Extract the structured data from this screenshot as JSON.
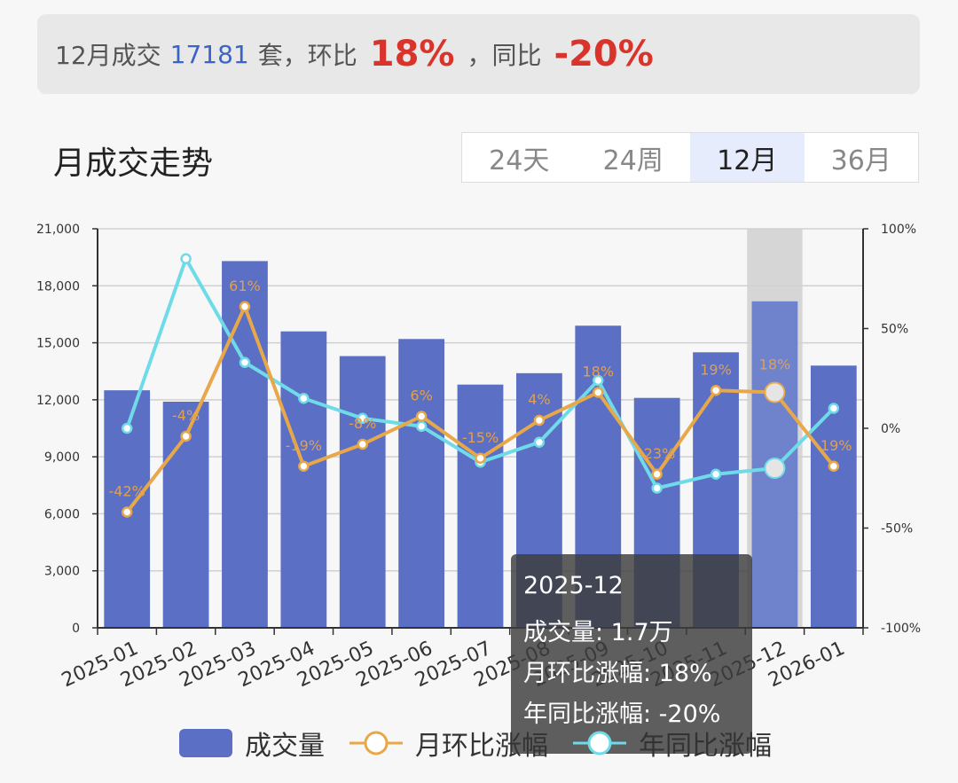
{
  "summary": {
    "prefix": "12月成交",
    "volume": "17181",
    "unit_mom": "套，环比",
    "mom": "18%",
    "sep": "，同比",
    "yoy": "-20%"
  },
  "title": "月成交走势",
  "tabs": [
    {
      "label": "24天",
      "active": false
    },
    {
      "label": "24周",
      "active": false
    },
    {
      "label": "12月",
      "active": true
    },
    {
      "label": "36月",
      "active": false
    }
  ],
  "tooltip": {
    "date": "2025-12",
    "volume_line": "成交量: 1.7万",
    "mom_line": "月环比涨幅: 18%",
    "yoy_line": "年同比涨幅: -20%"
  },
  "legend": [
    "成交量",
    "月环比涨幅",
    "年同比涨幅"
  ],
  "colors": {
    "bar": "#5b6fc4",
    "mom": "#e8a84a",
    "yoy": "#6fdbe8",
    "highlight": "#d6d6d6"
  },
  "chart_data": {
    "type": "bar",
    "categories": [
      "2025-01",
      "2025-02",
      "2025-03",
      "2025-04",
      "2025-05",
      "2025-06",
      "2025-07",
      "2025-08",
      "2025-09",
      "2025-10",
      "2025-11",
      "2025-12",
      "2026-01"
    ],
    "series": [
      {
        "name": "成交量",
        "type": "bar",
        "axis": "left",
        "values": [
          12500,
          11900,
          19300,
          15600,
          14300,
          15200,
          12800,
          13400,
          15900,
          12100,
          14500,
          17181,
          13800
        ]
      },
      {
        "name": "月环比涨幅",
        "type": "line",
        "axis": "right",
        "values": [
          -42,
          -4,
          61,
          -19,
          -8,
          6,
          -15,
          4,
          18,
          -23,
          19,
          18,
          -19
        ],
        "labels": [
          "-42%",
          "-4%",
          "61%",
          "-19%",
          "-8%",
          "6%",
          "-15%",
          "4%",
          "18%",
          "-23%",
          "19%",
          "18%",
          "-19%"
        ]
      },
      {
        "name": "年同比涨幅",
        "type": "line",
        "axis": "right",
        "values": [
          0,
          85,
          33,
          15,
          5,
          1,
          -17,
          -7,
          24,
          -30,
          -23,
          -20,
          10
        ]
      }
    ],
    "left_axis": {
      "ylim": [
        0,
        21000
      ],
      "ticks": [
        "0",
        "3,000",
        "6,000",
        "9,000",
        "12,000",
        "15,000",
        "18,000",
        "21,000"
      ]
    },
    "right_axis": {
      "ylim": [
        -100,
        100
      ],
      "ticks": [
        "-100%",
        "-50%",
        "0%",
        "50%",
        "100%"
      ]
    },
    "highlight_category": "2025-12",
    "grid": true,
    "legend_position": "bottom"
  }
}
